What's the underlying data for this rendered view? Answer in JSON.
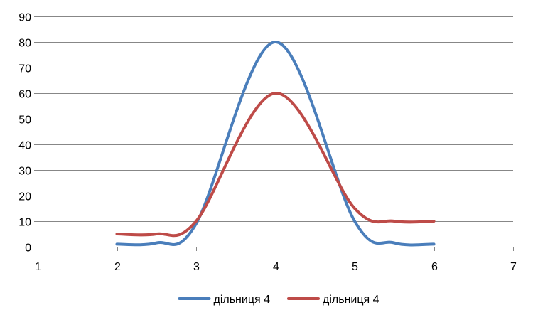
{
  "chart_data": {
    "type": "line",
    "smooth": true,
    "x_range": [
      1,
      7
    ],
    "y_range": [
      0,
      90
    ],
    "x_ticks": [
      1,
      2,
      3,
      4,
      5,
      6,
      7
    ],
    "y_ticks": [
      0,
      10,
      20,
      30,
      40,
      50,
      60,
      70,
      80,
      90
    ],
    "x_tick_labels": [
      "1",
      "2",
      "3",
      "4",
      "5",
      "6",
      "7"
    ],
    "y_tick_labels": [
      "0",
      "10",
      "20",
      "30",
      "40",
      "50",
      "60",
      "70",
      "80",
      "90"
    ],
    "grid": "horizontal",
    "legend_position": "bottom",
    "series": [
      {
        "name": "дільниця 4",
        "color": "#4A7EBB",
        "x": [
          2,
          2.5,
          3,
          4,
          5,
          5.5,
          6
        ],
        "y": [
          1,
          1.5,
          9,
          80,
          10,
          1.5,
          1
        ]
      },
      {
        "name": "дільниця 4",
        "color": "#BE4B48",
        "x": [
          2,
          2.5,
          3,
          4,
          5,
          5.5,
          6
        ],
        "y": [
          5,
          5,
          10,
          60,
          15,
          10,
          10
        ]
      }
    ],
    "colors": {
      "grid": "#878787",
      "axis": "#878787"
    }
  }
}
